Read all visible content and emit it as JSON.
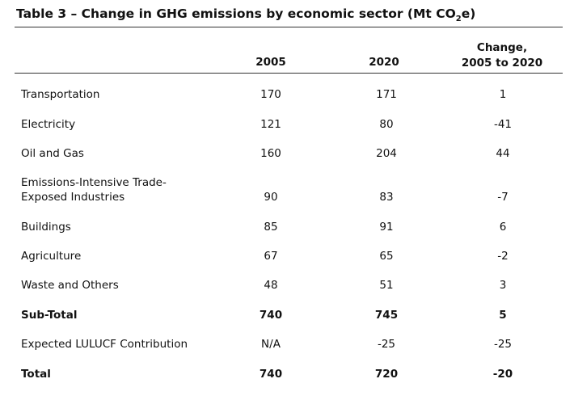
{
  "table": {
    "title_prefix": "Table 3 – Change in GHG emissions by economic sector (Mt CO",
    "title_sub": "2",
    "title_suffix": "e)",
    "headers": {
      "col1": "2005",
      "col2": "2020",
      "col3_line1": "Change,",
      "col3_line2": "2005 to 2020"
    },
    "rows": [
      {
        "label": "Transportation",
        "v2005": "170",
        "v2020": "171",
        "change": "1"
      },
      {
        "label": "Electricity",
        "v2005": "121",
        "v2020": "80",
        "change": "-41"
      },
      {
        "label": "Oil and Gas",
        "v2005": "160",
        "v2020": "204",
        "change": "44"
      },
      {
        "label_line1": "Emissions-Intensive Trade-",
        "label_line2": "Exposed Industries",
        "v2005": "90",
        "v2020": "83",
        "change": "-7"
      },
      {
        "label": "Buildings",
        "v2005": "85",
        "v2020": "91",
        "change": "6"
      },
      {
        "label": "Agriculture",
        "v2005": "67",
        "v2020": "65",
        "change": "-2"
      },
      {
        "label": "Waste and Others",
        "v2005": "48",
        "v2020": "51",
        "change": "3"
      },
      {
        "label": "Sub-Total",
        "v2005": "740",
        "v2020": "745",
        "change": "5"
      },
      {
        "label": "Expected LULUCF Contribution",
        "v2005": "N/A",
        "v2020": "-25",
        "change": "-25"
      },
      {
        "label": "Total",
        "v2005": "740",
        "v2020": "720",
        "change": "-20"
      }
    ]
  }
}
